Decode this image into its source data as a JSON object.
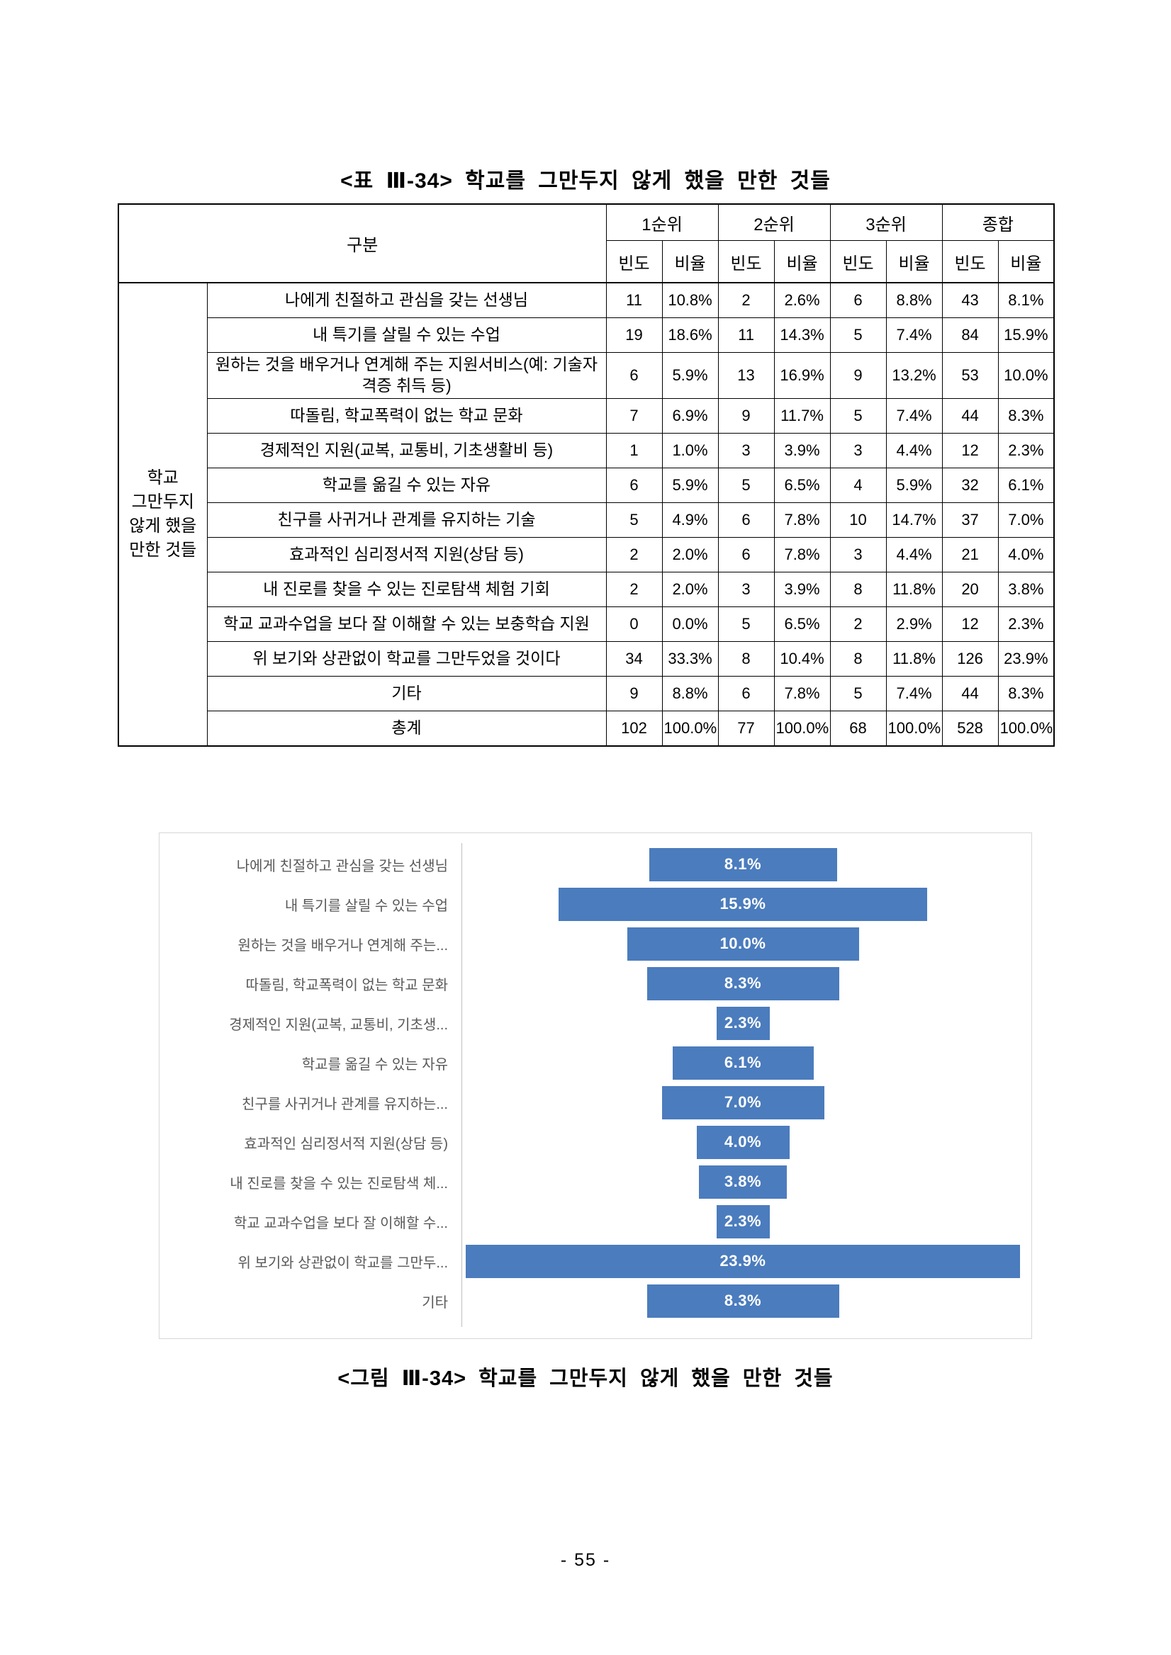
{
  "titles": {
    "table_caption": "<표 Ⅲ-34> 학교를 그만두지 않게 했을 만한 것들",
    "figure_caption": "<그림 Ⅲ-34> 학교를 그만두지 않게 했을 만한 것들"
  },
  "page": {
    "number_label": "- 55 -"
  },
  "table": {
    "headers": {
      "gubun": "구분",
      "rank1": "1순위",
      "rank2": "2순위",
      "rank3": "3순위",
      "total": "종합",
      "freq": "빈도",
      "ratio": "비율"
    },
    "group_label_lines": [
      "학교",
      "그만두지",
      "않게 했을",
      "만한 것들"
    ],
    "rows": [
      {
        "label": "나에게 친절하고 관심을 갖는 선생님",
        "values": [
          "11",
          "10.8%",
          "2",
          "2.6%",
          "6",
          "8.8%",
          "43",
          "8.1%"
        ]
      },
      {
        "label": "내 특기를 살릴 수 있는 수업",
        "values": [
          "19",
          "18.6%",
          "11",
          "14.3%",
          "5",
          "7.4%",
          "84",
          "15.9%"
        ]
      },
      {
        "label": "원하는 것을 배우거나 연계해 주는 지원서비스(예: 기술자격증 취득 등)",
        "values": [
          "6",
          "5.9%",
          "13",
          "16.9%",
          "9",
          "13.2%",
          "53",
          "10.0%"
        ]
      },
      {
        "label": "따돌림, 학교폭력이 없는 학교 문화",
        "values": [
          "7",
          "6.9%",
          "9",
          "11.7%",
          "5",
          "7.4%",
          "44",
          "8.3%"
        ]
      },
      {
        "label": "경제적인 지원(교복, 교통비, 기초생활비 등)",
        "values": [
          "1",
          "1.0%",
          "3",
          "3.9%",
          "3",
          "4.4%",
          "12",
          "2.3%"
        ]
      },
      {
        "label": "학교를 옮길 수 있는 자유",
        "values": [
          "6",
          "5.9%",
          "5",
          "6.5%",
          "4",
          "5.9%",
          "32",
          "6.1%"
        ]
      },
      {
        "label": "친구를 사귀거나 관계를 유지하는 기술",
        "values": [
          "5",
          "4.9%",
          "6",
          "7.8%",
          "10",
          "14.7%",
          "37",
          "7.0%"
        ]
      },
      {
        "label": "효과적인 심리정서적 지원(상담 등)",
        "values": [
          "2",
          "2.0%",
          "6",
          "7.8%",
          "3",
          "4.4%",
          "21",
          "4.0%"
        ]
      },
      {
        "label": "내 진로를 찾을 수 있는 진로탐색 체험 기회",
        "values": [
          "2",
          "2.0%",
          "3",
          "3.9%",
          "8",
          "11.8%",
          "20",
          "3.8%"
        ]
      },
      {
        "label": "학교 교과수업을 보다 잘 이해할 수 있는 보충학습 지원",
        "values": [
          "0",
          "0.0%",
          "5",
          "6.5%",
          "2",
          "2.9%",
          "12",
          "2.3%"
        ]
      },
      {
        "label": "위 보기와 상관없이 학교를 그만두었을 것이다",
        "values": [
          "34",
          "33.3%",
          "8",
          "10.4%",
          "8",
          "11.8%",
          "126",
          "23.9%"
        ]
      },
      {
        "label": "기타",
        "values": [
          "9",
          "8.8%",
          "6",
          "7.8%",
          "5",
          "7.4%",
          "44",
          "8.3%"
        ]
      },
      {
        "label": "총계",
        "values": [
          "102",
          "100.0%",
          "77",
          "100.0%",
          "68",
          "100.0%",
          "528",
          "100.0%"
        ]
      }
    ]
  },
  "chart_data": {
    "type": "bar",
    "orientation": "horizontal-centered",
    "title": "",
    "xlabel": "",
    "ylabel": "",
    "grid": "off",
    "legend": "none",
    "categories": [
      "나에게 친절하고 관심을 갖는 선생님",
      "내 특기를 살릴 수 있는 수업",
      "원하는 것을 배우거나 연계해 주는...",
      "따돌림, 학교폭력이 없는 학교 문화",
      "경제적인 지원(교복, 교통비, 기초생...",
      "학교를 옮길 수 있는 자유",
      "친구를 사귀거나 관계를 유지하는...",
      "효과적인 심리정서적 지원(상담 등)",
      "내 진로를 찾을 수 있는 진로탐색 체...",
      "학교 교과수업을 보다 잘 이해할 수...",
      "위 보기와 상관없이 학교를 그만두...",
      "기타"
    ],
    "values": [
      8.1,
      15.9,
      10.0,
      8.3,
      2.3,
      6.1,
      7.0,
      4.0,
      3.8,
      2.3,
      23.9,
      8.3
    ],
    "value_labels": [
      "8.1%",
      "15.9%",
      "10.0%",
      "8.3%",
      "2.3%",
      "6.1%",
      "7.0%",
      "4.0%",
      "3.8%",
      "2.3%",
      "23.9%",
      "8.3%"
    ],
    "xlim": [
      0,
      24.6
    ],
    "bar_color": "#4b7cbd",
    "label_color": "#595959",
    "value_label_color": "#ffffff"
  }
}
